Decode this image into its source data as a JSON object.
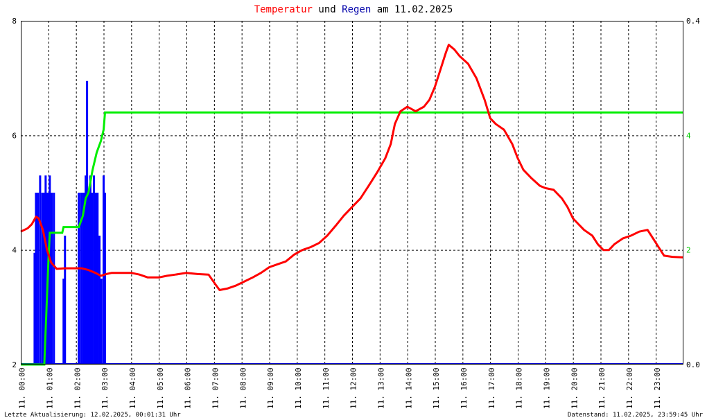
{
  "title_parts": [
    {
      "text": "Temperatur",
      "color": "#ff0000"
    },
    {
      "text": " und ",
      "color": "#000000"
    },
    {
      "text": "Regen",
      "color": "#0000aa"
    },
    {
      "text": " am 11.02.2025",
      "color": "#000000"
    }
  ],
  "footer": {
    "left": "Letzte Aktualisierung: 12.02.2025, 00:01:31 Uhr",
    "right": "Datenstand: 11.02.2025, 23:59:45 Uhr"
  },
  "colors": {
    "temperature": "#ff0000",
    "rain_sum": "#00ee00",
    "rain_rate": "#0000ff",
    "frame": "#000000",
    "grid": "#000000"
  },
  "chart_data": {
    "type": "line",
    "x_unit": "hours",
    "xlim": [
      0,
      24
    ],
    "x_tick_labels": [
      "11. 00:00",
      "11. 01:00",
      "11. 02:00",
      "11. 03:00",
      "11. 04:00",
      "11. 05:00",
      "11. 06:00",
      "11. 07:00",
      "11. 08:00",
      "11. 09:00",
      "11. 10:00",
      "11. 11:00",
      "11. 12:00",
      "11. 13:00",
      "11. 14:00",
      "11. 15:00",
      "11. 16:00",
      "11. 17:00",
      "11. 18:00",
      "11. 19:00",
      "11. 20:00",
      "11. 21:00",
      "11. 22:00",
      "11. 23:00"
    ],
    "y_left": {
      "lim": [
        2,
        8
      ],
      "ticks": [
        "2",
        "4",
        "6",
        "8"
      ],
      "color": "#000000"
    },
    "y_right_sum": {
      "lim": [
        0,
        6
      ],
      "ticks": [
        {
          "v": 2,
          "label": "2"
        },
        {
          "v": 4,
          "label": "4"
        }
      ],
      "color": "#00cc00"
    },
    "y_right_rate": {
      "lim": [
        0.0,
        0.4
      ],
      "ticks": [
        {
          "v": 0.0,
          "label": "0.0"
        },
        {
          "v": 0.4,
          "label": "0.4"
        }
      ],
      "color": "#000000"
    },
    "grid": true,
    "series": [
      {
        "role": "temperature",
        "axis": "left",
        "points": [
          [
            0,
            4.32
          ],
          [
            0.25,
            4.38
          ],
          [
            0.4,
            4.45
          ],
          [
            0.55,
            4.58
          ],
          [
            0.65,
            4.55
          ],
          [
            0.8,
            4.35
          ],
          [
            0.95,
            4.0
          ],
          [
            1.1,
            3.78
          ],
          [
            1.3,
            3.67
          ],
          [
            1.6,
            3.68
          ],
          [
            1.9,
            3.68
          ],
          [
            2.2,
            3.68
          ],
          [
            2.45,
            3.65
          ],
          [
            2.7,
            3.6
          ],
          [
            2.9,
            3.55
          ],
          [
            3.1,
            3.58
          ],
          [
            3.3,
            3.6
          ],
          [
            3.6,
            3.6
          ],
          [
            4.0,
            3.6
          ],
          [
            4.3,
            3.57
          ],
          [
            4.6,
            3.52
          ],
          [
            5.0,
            3.52
          ],
          [
            5.3,
            3.55
          ],
          [
            5.6,
            3.57
          ],
          [
            6.0,
            3.6
          ],
          [
            6.4,
            3.58
          ],
          [
            6.8,
            3.57
          ],
          [
            7.05,
            3.4
          ],
          [
            7.2,
            3.3
          ],
          [
            7.5,
            3.33
          ],
          [
            7.8,
            3.38
          ],
          [
            8.1,
            3.45
          ],
          [
            8.4,
            3.52
          ],
          [
            8.7,
            3.6
          ],
          [
            9.0,
            3.7
          ],
          [
            9.3,
            3.75
          ],
          [
            9.6,
            3.8
          ],
          [
            9.9,
            3.92
          ],
          [
            10.2,
            4.0
          ],
          [
            10.5,
            4.05
          ],
          [
            10.8,
            4.12
          ],
          [
            11.1,
            4.25
          ],
          [
            11.4,
            4.42
          ],
          [
            11.7,
            4.6
          ],
          [
            12.0,
            4.75
          ],
          [
            12.3,
            4.9
          ],
          [
            12.6,
            5.12
          ],
          [
            12.9,
            5.35
          ],
          [
            13.2,
            5.6
          ],
          [
            13.4,
            5.85
          ],
          [
            13.55,
            6.2
          ],
          [
            13.75,
            6.42
          ],
          [
            14.0,
            6.5
          ],
          [
            14.3,
            6.42
          ],
          [
            14.6,
            6.5
          ],
          [
            14.8,
            6.62
          ],
          [
            15.0,
            6.85
          ],
          [
            15.2,
            7.15
          ],
          [
            15.4,
            7.45
          ],
          [
            15.5,
            7.58
          ],
          [
            15.7,
            7.5
          ],
          [
            15.9,
            7.38
          ],
          [
            16.2,
            7.25
          ],
          [
            16.5,
            7.0
          ],
          [
            16.8,
            6.62
          ],
          [
            17.0,
            6.3
          ],
          [
            17.2,
            6.2
          ],
          [
            17.5,
            6.1
          ],
          [
            17.8,
            5.85
          ],
          [
            18.0,
            5.6
          ],
          [
            18.2,
            5.4
          ],
          [
            18.5,
            5.25
          ],
          [
            18.8,
            5.12
          ],
          [
            19.0,
            5.08
          ],
          [
            19.3,
            5.05
          ],
          [
            19.6,
            4.9
          ],
          [
            19.8,
            4.75
          ],
          [
            20.0,
            4.55
          ],
          [
            20.2,
            4.45
          ],
          [
            20.4,
            4.35
          ],
          [
            20.7,
            4.25
          ],
          [
            20.9,
            4.1
          ],
          [
            21.1,
            4.0
          ],
          [
            21.3,
            4.0
          ],
          [
            21.5,
            4.1
          ],
          [
            21.8,
            4.2
          ],
          [
            22.1,
            4.25
          ],
          [
            22.4,
            4.32
          ],
          [
            22.7,
            4.35
          ],
          [
            22.9,
            4.2
          ],
          [
            23.1,
            4.05
          ],
          [
            23.3,
            3.9
          ],
          [
            23.6,
            3.88
          ],
          [
            24.0,
            3.87
          ]
        ]
      },
      {
        "role": "rain_sum",
        "axis": "right_sum",
        "points": [
          [
            0,
            0
          ],
          [
            0.85,
            0
          ],
          [
            1.0,
            1.8
          ],
          [
            1.05,
            2.3
          ],
          [
            1.5,
            2.3
          ],
          [
            1.55,
            2.4
          ],
          [
            2.1,
            2.4
          ],
          [
            2.25,
            2.6
          ],
          [
            2.35,
            2.9
          ],
          [
            2.45,
            3.0
          ],
          [
            2.6,
            3.4
          ],
          [
            2.75,
            3.7
          ],
          [
            2.9,
            3.9
          ],
          [
            3.0,
            4.1
          ],
          [
            3.05,
            4.4
          ],
          [
            24.0,
            4.4
          ]
        ]
      },
      {
        "role": "rain_rate",
        "axis": "right_rate",
        "kind": "bars",
        "points": [
          [
            0.5,
            0.13
          ],
          [
            0.55,
            0.2
          ],
          [
            0.62,
            0.2
          ],
          [
            0.7,
            0.22
          ],
          [
            0.78,
            0.2
          ],
          [
            0.85,
            0.2
          ],
          [
            0.9,
            0.22
          ],
          [
            0.95,
            0.2
          ],
          [
            1.0,
            0.2
          ],
          [
            1.05,
            0.22
          ],
          [
            1.12,
            0.2
          ],
          [
            1.2,
            0.2
          ],
          [
            1.55,
            0.1
          ],
          [
            1.6,
            0.15
          ],
          [
            2.1,
            0.2
          ],
          [
            2.18,
            0.2
          ],
          [
            2.25,
            0.2
          ],
          [
            2.3,
            0.2
          ],
          [
            2.35,
            0.22
          ],
          [
            2.4,
            0.33
          ],
          [
            2.45,
            0.2
          ],
          [
            2.52,
            0.22
          ],
          [
            2.58,
            0.2
          ],
          [
            2.65,
            0.22
          ],
          [
            2.72,
            0.2
          ],
          [
            2.78,
            0.2
          ],
          [
            2.85,
            0.15
          ],
          [
            2.92,
            0.1
          ],
          [
            3.0,
            0.22
          ],
          [
            3.05,
            0.2
          ]
        ]
      }
    ]
  }
}
